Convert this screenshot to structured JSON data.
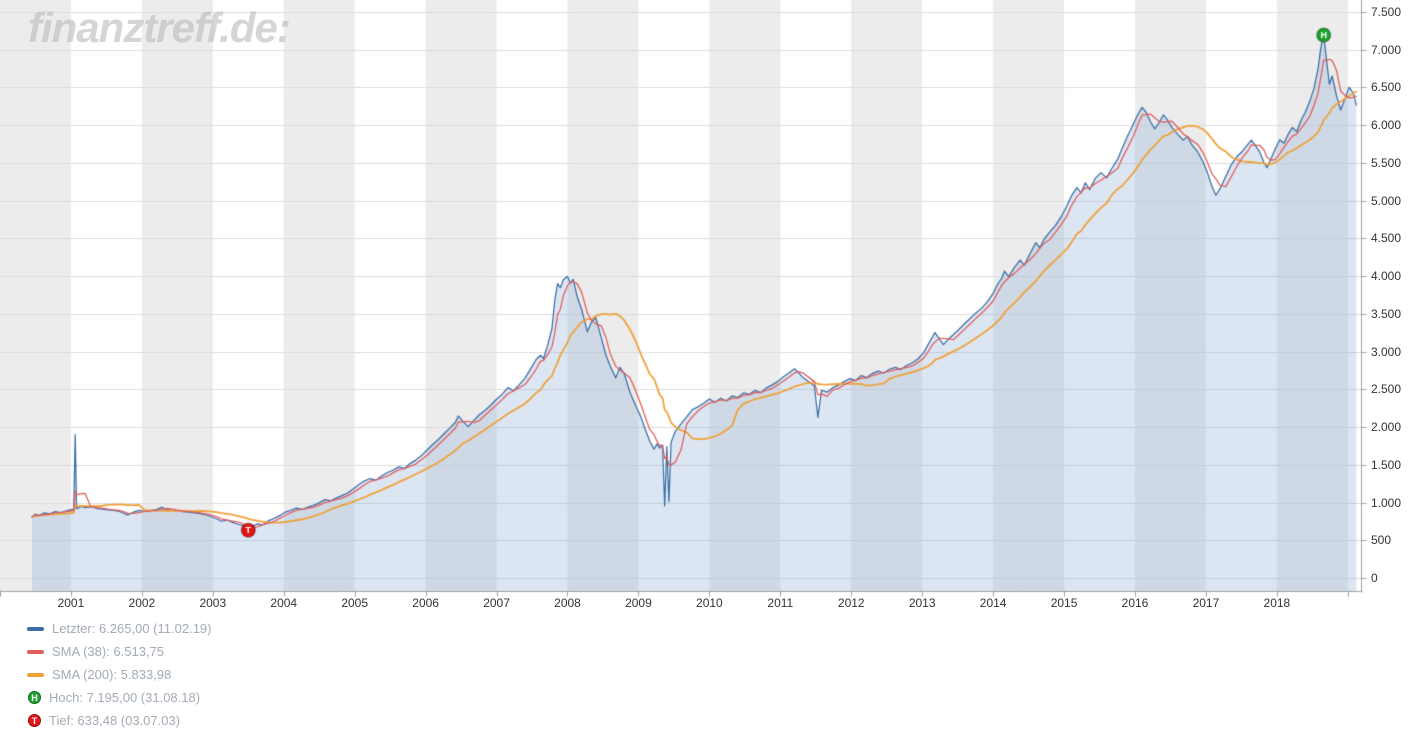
{
  "watermark": "finanztreff.de:",
  "colors": {
    "price": "#3a6ea8",
    "price_fill": "rgba(140,172,212,0.30)",
    "sma38": "#e06060",
    "sma200": "#efa239",
    "band": "#ececec",
    "grid": "#dcdcdc",
    "axis": "#a0a0a0",
    "tick_text": "#333333",
    "legend_text": "#a3abb5",
    "high": "#1da32f",
    "low": "#e31515"
  },
  "chart_data": {
    "type": "line",
    "title": "",
    "x_axis": {
      "min": 2000.0,
      "max": 2019.2,
      "year_labels": [
        "2001",
        "2002",
        "2003",
        "2004",
        "2005",
        "2006",
        "2007",
        "2008",
        "2009",
        "2010",
        "2011",
        "2012",
        "2013",
        "2014",
        "2015",
        "2016",
        "2017",
        "2018"
      ]
    },
    "y_axis": {
      "min": 0,
      "max": 7500,
      "step": 500,
      "tick_labels": [
        "7.500",
        "7.000",
        "6.500",
        "6.000",
        "5.500",
        "5.000",
        "4.500",
        "4.000",
        "3.500",
        "3.000",
        "2.500",
        "2.000",
        "1.500",
        "1.000",
        "500",
        "0"
      ]
    },
    "series": [
      {
        "name": "Letzter",
        "last_value": "6.265,00",
        "last_date": "11.02.19",
        "color_key": "price",
        "points": [
          [
            2000.45,
            810
          ],
          [
            2000.5,
            845
          ],
          [
            2000.55,
            830
          ],
          [
            2000.62,
            862
          ],
          [
            2000.7,
            850
          ],
          [
            2000.78,
            880
          ],
          [
            2000.86,
            868
          ],
          [
            2000.94,
            890
          ],
          [
            2001.0,
            905
          ],
          [
            2001.04,
            912
          ],
          [
            2001.06,
            1900
          ],
          [
            2001.08,
            918
          ],
          [
            2001.15,
            948
          ],
          [
            2001.2,
            932
          ],
          [
            2001.28,
            944
          ],
          [
            2001.36,
            924
          ],
          [
            2001.44,
            912
          ],
          [
            2001.52,
            904
          ],
          [
            2001.6,
            896
          ],
          [
            2001.68,
            884
          ],
          [
            2001.74,
            858
          ],
          [
            2001.8,
            836
          ],
          [
            2001.88,
            872
          ],
          [
            2001.96,
            895
          ],
          [
            2002.04,
            882
          ],
          [
            2002.12,
            893
          ],
          [
            2002.2,
            906
          ],
          [
            2002.28,
            938
          ],
          [
            2002.34,
            912
          ],
          [
            2002.42,
            896
          ],
          [
            2002.5,
            888
          ],
          [
            2002.58,
            880
          ],
          [
            2002.66,
            874
          ],
          [
            2002.74,
            862
          ],
          [
            2002.82,
            852
          ],
          [
            2002.9,
            838
          ],
          [
            2002.98,
            812
          ],
          [
            2003.06,
            782
          ],
          [
            2003.12,
            752
          ],
          [
            2003.2,
            768
          ],
          [
            2003.28,
            738
          ],
          [
            2003.36,
            712
          ],
          [
            2003.44,
            688
          ],
          [
            2003.5,
            633
          ],
          [
            2003.56,
            692
          ],
          [
            2003.64,
            718
          ],
          [
            2003.7,
            702
          ],
          [
            2003.78,
            756
          ],
          [
            2003.86,
            788
          ],
          [
            2003.94,
            826
          ],
          [
            2004.02,
            872
          ],
          [
            2004.1,
            898
          ],
          [
            2004.18,
            926
          ],
          [
            2004.26,
            908
          ],
          [
            2004.34,
            940
          ],
          [
            2004.42,
            962
          ],
          [
            2004.5,
            996
          ],
          [
            2004.58,
            1038
          ],
          [
            2004.66,
            1022
          ],
          [
            2004.74,
            1058
          ],
          [
            2004.82,
            1092
          ],
          [
            2004.9,
            1126
          ],
          [
            2004.98,
            1180
          ],
          [
            2005.06,
            1238
          ],
          [
            2005.14,
            1288
          ],
          [
            2005.22,
            1318
          ],
          [
            2005.3,
            1296
          ],
          [
            2005.38,
            1352
          ],
          [
            2005.46,
            1398
          ],
          [
            2005.54,
            1428
          ],
          [
            2005.62,
            1472
          ],
          [
            2005.7,
            1452
          ],
          [
            2005.78,
            1516
          ],
          [
            2005.86,
            1562
          ],
          [
            2005.94,
            1622
          ],
          [
            2006.02,
            1696
          ],
          [
            2006.1,
            1768
          ],
          [
            2006.18,
            1836
          ],
          [
            2006.26,
            1912
          ],
          [
            2006.34,
            1986
          ],
          [
            2006.42,
            2064
          ],
          [
            2006.46,
            2148
          ],
          [
            2006.52,
            2082
          ],
          [
            2006.6,
            2006
          ],
          [
            2006.68,
            2088
          ],
          [
            2006.76,
            2166
          ],
          [
            2006.84,
            2222
          ],
          [
            2006.92,
            2292
          ],
          [
            2007.0,
            2368
          ],
          [
            2007.08,
            2436
          ],
          [
            2007.16,
            2522
          ],
          [
            2007.24,
            2482
          ],
          [
            2007.32,
            2562
          ],
          [
            2007.4,
            2646
          ],
          [
            2007.48,
            2772
          ],
          [
            2007.56,
            2898
          ],
          [
            2007.62,
            2952
          ],
          [
            2007.66,
            2906
          ],
          [
            2007.72,
            3082
          ],
          [
            2007.78,
            3306
          ],
          [
            2007.82,
            3672
          ],
          [
            2007.86,
            3902
          ],
          [
            2007.9,
            3846
          ],
          [
            2007.94,
            3952
          ],
          [
            2008.0,
            3996
          ],
          [
            2008.04,
            3906
          ],
          [
            2008.08,
            3958
          ],
          [
            2008.14,
            3716
          ],
          [
            2008.2,
            3558
          ],
          [
            2008.28,
            3262
          ],
          [
            2008.34,
            3396
          ],
          [
            2008.4,
            3448
          ],
          [
            2008.48,
            3168
          ],
          [
            2008.54,
            2958
          ],
          [
            2008.6,
            2812
          ],
          [
            2008.68,
            2652
          ],
          [
            2008.74,
            2792
          ],
          [
            2008.8,
            2706
          ],
          [
            2008.88,
            2462
          ],
          [
            2008.96,
            2286
          ],
          [
            2009.04,
            2122
          ],
          [
            2009.1,
            1962
          ],
          [
            2009.16,
            1812
          ],
          [
            2009.22,
            1706
          ],
          [
            2009.26,
            1776
          ],
          [
            2009.3,
            1722
          ],
          [
            2009.34,
            1762
          ],
          [
            2009.37,
            956
          ],
          [
            2009.4,
            1742
          ],
          [
            2009.43,
            1012
          ],
          [
            2009.46,
            1798
          ],
          [
            2009.52,
            1942
          ],
          [
            2009.6,
            2042
          ],
          [
            2009.68,
            2136
          ],
          [
            2009.76,
            2232
          ],
          [
            2009.84,
            2268
          ],
          [
            2009.92,
            2316
          ],
          [
            2010.0,
            2372
          ],
          [
            2010.08,
            2328
          ],
          [
            2010.16,
            2382
          ],
          [
            2010.24,
            2346
          ],
          [
            2010.32,
            2412
          ],
          [
            2010.4,
            2392
          ],
          [
            2010.48,
            2452
          ],
          [
            2010.56,
            2432
          ],
          [
            2010.64,
            2486
          ],
          [
            2010.72,
            2456
          ],
          [
            2010.8,
            2516
          ],
          [
            2010.88,
            2556
          ],
          [
            2010.96,
            2602
          ],
          [
            2011.04,
            2662
          ],
          [
            2011.12,
            2716
          ],
          [
            2011.2,
            2772
          ],
          [
            2011.26,
            2718
          ],
          [
            2011.32,
            2656
          ],
          [
            2011.4,
            2602
          ],
          [
            2011.48,
            2548
          ],
          [
            2011.53,
            2128
          ],
          [
            2011.58,
            2486
          ],
          [
            2011.66,
            2462
          ],
          [
            2011.74,
            2522
          ],
          [
            2011.82,
            2556
          ],
          [
            2011.9,
            2602
          ],
          [
            2011.98,
            2642
          ],
          [
            2012.06,
            2616
          ],
          [
            2012.14,
            2682
          ],
          [
            2012.22,
            2656
          ],
          [
            2012.3,
            2712
          ],
          [
            2012.38,
            2742
          ],
          [
            2012.46,
            2716
          ],
          [
            2012.54,
            2766
          ],
          [
            2012.62,
            2792
          ],
          [
            2012.7,
            2762
          ],
          [
            2012.78,
            2816
          ],
          [
            2012.86,
            2852
          ],
          [
            2012.94,
            2902
          ],
          [
            2013.02,
            2986
          ],
          [
            2013.08,
            3086
          ],
          [
            2013.14,
            3186
          ],
          [
            2013.18,
            3252
          ],
          [
            2013.24,
            3172
          ],
          [
            2013.3,
            3092
          ],
          [
            2013.36,
            3156
          ],
          [
            2013.44,
            3226
          ],
          [
            2013.52,
            3296
          ],
          [
            2013.6,
            3372
          ],
          [
            2013.68,
            3442
          ],
          [
            2013.76,
            3516
          ],
          [
            2013.84,
            3576
          ],
          [
            2013.92,
            3662
          ],
          [
            2014.0,
            3772
          ],
          [
            2014.06,
            3888
          ],
          [
            2014.12,
            3972
          ],
          [
            2014.16,
            4066
          ],
          [
            2014.22,
            3992
          ],
          [
            2014.3,
            4116
          ],
          [
            2014.38,
            4212
          ],
          [
            2014.44,
            4146
          ],
          [
            2014.52,
            4296
          ],
          [
            2014.6,
            4442
          ],
          [
            2014.66,
            4376
          ],
          [
            2014.72,
            4492
          ],
          [
            2014.8,
            4586
          ],
          [
            2014.88,
            4672
          ],
          [
            2014.96,
            4788
          ],
          [
            2015.04,
            4932
          ],
          [
            2015.1,
            5056
          ],
          [
            2015.18,
            5172
          ],
          [
            2015.24,
            5102
          ],
          [
            2015.3,
            5238
          ],
          [
            2015.36,
            5146
          ],
          [
            2015.44,
            5296
          ],
          [
            2015.52,
            5372
          ],
          [
            2015.6,
            5302
          ],
          [
            2015.68,
            5436
          ],
          [
            2015.76,
            5558
          ],
          [
            2015.82,
            5696
          ],
          [
            2015.9,
            5866
          ],
          [
            2015.98,
            6022
          ],
          [
            2016.04,
            6142
          ],
          [
            2016.1,
            6236
          ],
          [
            2016.16,
            6166
          ],
          [
            2016.22,
            6042
          ],
          [
            2016.28,
            5952
          ],
          [
            2016.34,
            6036
          ],
          [
            2016.4,
            6136
          ],
          [
            2016.46,
            6066
          ],
          [
            2016.52,
            5972
          ],
          [
            2016.6,
            5882
          ],
          [
            2016.68,
            5802
          ],
          [
            2016.74,
            5852
          ],
          [
            2016.8,
            5742
          ],
          [
            2016.88,
            5652
          ],
          [
            2016.96,
            5512
          ],
          [
            2017.02,
            5372
          ],
          [
            2017.08,
            5202
          ],
          [
            2017.14,
            5072
          ],
          [
            2017.2,
            5162
          ],
          [
            2017.28,
            5322
          ],
          [
            2017.36,
            5482
          ],
          [
            2017.44,
            5586
          ],
          [
            2017.52,
            5662
          ],
          [
            2017.6,
            5756
          ],
          [
            2017.64,
            5802
          ],
          [
            2017.7,
            5726
          ],
          [
            2017.76,
            5642
          ],
          [
            2017.82,
            5502
          ],
          [
            2017.86,
            5436
          ],
          [
            2017.92,
            5562
          ],
          [
            2017.98,
            5692
          ],
          [
            2018.04,
            5806
          ],
          [
            2018.1,
            5762
          ],
          [
            2018.16,
            5882
          ],
          [
            2018.22,
            5972
          ],
          [
            2018.28,
            5912
          ],
          [
            2018.34,
            6062
          ],
          [
            2018.4,
            6172
          ],
          [
            2018.46,
            6306
          ],
          [
            2018.52,
            6478
          ],
          [
            2018.58,
            6742
          ],
          [
            2018.62,
            7028
          ],
          [
            2018.66,
            7195
          ],
          [
            2018.7,
            6862
          ],
          [
            2018.74,
            6542
          ],
          [
            2018.78,
            6652
          ],
          [
            2018.84,
            6392
          ],
          [
            2018.9,
            6202
          ],
          [
            2018.96,
            6352
          ],
          [
            2019.02,
            6502
          ],
          [
            2019.08,
            6422
          ],
          [
            2019.12,
            6265
          ]
        ]
      },
      {
        "name": "SMA (38)",
        "value": "6.513,75",
        "color_key": "sma38",
        "derived": "sma",
        "window_years": 0.18
      },
      {
        "name": "SMA (200)",
        "value": "5.833,98",
        "color_key": "sma200",
        "derived": "sma",
        "window_years": 0.95
      }
    ],
    "markers": [
      {
        "label": "H",
        "name": "Hoch",
        "value": 7195,
        "value_text": "7.195,00",
        "date": "31.08.18",
        "x": 2018.66,
        "color_key": "high"
      },
      {
        "label": "T",
        "name": "Tief",
        "value": 633.48,
        "value_text": "633,48",
        "date": "03.07.03",
        "x": 2003.5,
        "color_key": "low"
      }
    ]
  },
  "legend": {
    "items": [
      {
        "type": "line",
        "color_key": "price",
        "label": "Letzter: 6.265,00 (11.02.19)"
      },
      {
        "type": "line",
        "color_key": "sma38",
        "label": "SMA (38): 6.513,75"
      },
      {
        "type": "line",
        "color_key": "sma200",
        "label": "SMA (200): 5.833,98"
      },
      {
        "type": "marker",
        "letter": "H",
        "color_key": "high",
        "label": "Hoch: 7.195,00 (31.08.18)"
      },
      {
        "type": "marker",
        "letter": "T",
        "color_key": "low",
        "label": "Tief: 633,48 (03.07.03)"
      }
    ]
  }
}
